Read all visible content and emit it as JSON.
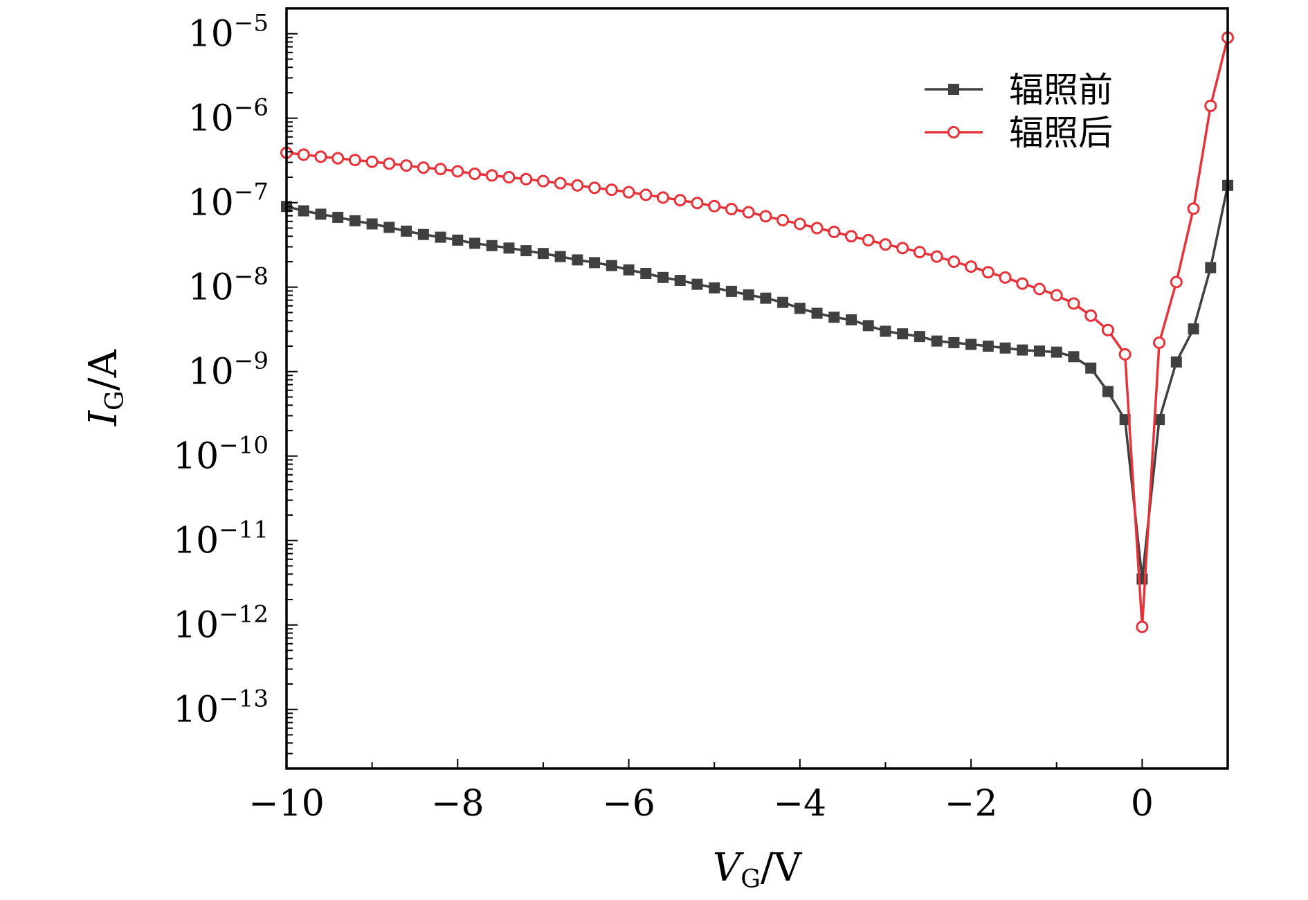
{
  "chart_data": {
    "type": "line",
    "xlabel": {
      "main": "V",
      "sub": "G",
      "unit": "/V"
    },
    "ylabel": {
      "main": "I",
      "sub": "G",
      "unit": "/A"
    },
    "xlim": [
      -10,
      1
    ],
    "ylim": [
      2e-14,
      2e-05
    ],
    "yscale": "log",
    "grid": false,
    "legend": "top-right",
    "x_ticks": [
      {
        "value": -10,
        "label": "−10"
      },
      {
        "value": -8,
        "label": "−8"
      },
      {
        "value": -6,
        "label": "−6"
      },
      {
        "value": -4,
        "label": "−4"
      },
      {
        "value": -2,
        "label": "−2"
      },
      {
        "value": 0,
        "label": "0"
      }
    ],
    "y_ticks": [
      {
        "value": 1e-05,
        "base": "10",
        "exp": "−5"
      },
      {
        "value": 1e-06,
        "base": "10",
        "exp": "−6"
      },
      {
        "value": 1e-07,
        "base": "10",
        "exp": "−7"
      },
      {
        "value": 1e-08,
        "base": "10",
        "exp": "−8"
      },
      {
        "value": 1e-09,
        "base": "10",
        "exp": "−9"
      },
      {
        "value": 1e-10,
        "base": "10",
        "exp": "−10"
      },
      {
        "value": 1e-11,
        "base": "10",
        "exp": "−11"
      },
      {
        "value": 1e-12,
        "base": "10",
        "exp": "−12"
      },
      {
        "value": 1e-13,
        "base": "10",
        "exp": "−13"
      }
    ],
    "series": [
      {
        "name": "辐照前",
        "color": "#404040",
        "marker": "square",
        "x": [
          -10.0,
          -9.8,
          -9.6,
          -9.4,
          -9.2,
          -9.0,
          -8.8,
          -8.6,
          -8.4,
          -8.2,
          -8.0,
          -7.8,
          -7.6,
          -7.4,
          -7.2,
          -7.0,
          -6.8,
          -6.6,
          -6.4,
          -6.2,
          -6.0,
          -5.8,
          -5.6,
          -5.4,
          -5.2,
          -5.0,
          -4.8,
          -4.6,
          -4.4,
          -4.2,
          -4.0,
          -3.8,
          -3.6,
          -3.4,
          -3.2,
          -3.0,
          -2.8,
          -2.6,
          -2.4,
          -2.2,
          -2.0,
          -1.8,
          -1.6,
          -1.4,
          -1.2,
          -1.0,
          -0.8,
          -0.6,
          -0.4,
          -0.2,
          0.0,
          0.2,
          0.4,
          0.6,
          0.8,
          1.0
        ],
        "y": [
          9e-08,
          8e-08,
          7.3e-08,
          6.7e-08,
          6.1e-08,
          5.6e-08,
          5.1e-08,
          4.6e-08,
          4.2e-08,
          3.9e-08,
          3.6e-08,
          3.3e-08,
          3.1e-08,
          2.9e-08,
          2.7e-08,
          2.5e-08,
          2.3e-08,
          2.1e-08,
          1.95e-08,
          1.8e-08,
          1.6e-08,
          1.45e-08,
          1.3e-08,
          1.2e-08,
          1.08e-08,
          9.8e-09,
          8.9e-09,
          8.1e-09,
          7.4e-09,
          6.6e-09,
          5.6e-09,
          4.9e-09,
          4.4e-09,
          4.1e-09,
          3.5e-09,
          3e-09,
          2.8e-09,
          2.6e-09,
          2.3e-09,
          2.2e-09,
          2.1e-09,
          2e-09,
          1.9e-09,
          1.8e-09,
          1.75e-09,
          1.7e-09,
          1.5e-09,
          1.1e-09,
          5.8e-10,
          2.7e-10,
          3.5e-12,
          2.7e-10,
          1.3e-09,
          3.2e-09,
          1.7e-08,
          1.6e-07
        ]
      },
      {
        "name": "辐照后",
        "color": "#e8323a",
        "marker": "circle",
        "x": [
          -10.0,
          -9.8,
          -9.6,
          -9.4,
          -9.2,
          -9.0,
          -8.8,
          -8.6,
          -8.4,
          -8.2,
          -8.0,
          -7.8,
          -7.6,
          -7.4,
          -7.2,
          -7.0,
          -6.8,
          -6.6,
          -6.4,
          -6.2,
          -6.0,
          -5.8,
          -5.6,
          -5.4,
          -5.2,
          -5.0,
          -4.8,
          -4.6,
          -4.4,
          -4.2,
          -4.0,
          -3.8,
          -3.6,
          -3.4,
          -3.2,
          -3.0,
          -2.8,
          -2.6,
          -2.4,
          -2.2,
          -2.0,
          -1.8,
          -1.6,
          -1.4,
          -1.2,
          -1.0,
          -0.8,
          -0.6,
          -0.4,
          -0.2,
          0.0,
          0.2,
          0.4,
          0.6,
          0.8,
          1.0
        ],
        "y": [
          3.9e-07,
          3.7e-07,
          3.5e-07,
          3.35e-07,
          3.2e-07,
          3.05e-07,
          2.9e-07,
          2.75e-07,
          2.6e-07,
          2.5e-07,
          2.35e-07,
          2.2e-07,
          2.1e-07,
          2e-07,
          1.9e-07,
          1.8e-07,
          1.7e-07,
          1.6e-07,
          1.5e-07,
          1.42e-07,
          1.33e-07,
          1.24e-07,
          1.15e-07,
          1.07e-07,
          9.9e-08,
          9.1e-08,
          8.4e-08,
          7.7e-08,
          6.9e-08,
          6.2e-08,
          5.6e-08,
          5e-08,
          4.5e-08,
          4e-08,
          3.6e-08,
          3.2e-08,
          2.9e-08,
          2.6e-08,
          2.3e-08,
          2e-08,
          1.75e-08,
          1.5e-08,
          1.3e-08,
          1.1e-08,
          9.5e-09,
          8e-09,
          6.4e-09,
          4.6e-09,
          3.1e-09,
          1.6e-09,
          9.5e-13,
          2.2e-09,
          1.15e-08,
          8.5e-08,
          1.4e-06,
          9e-06
        ]
      }
    ]
  }
}
